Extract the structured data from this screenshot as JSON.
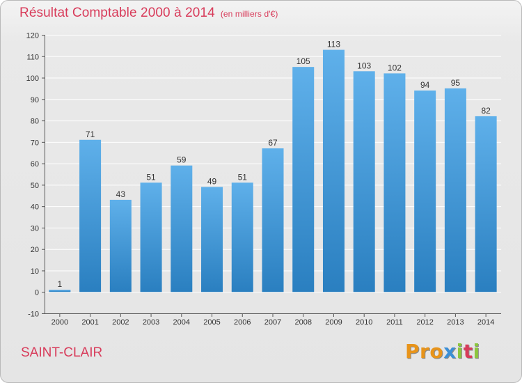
{
  "header": {
    "title": "Résultat Comptable 2000 à 2014",
    "subtitle": "(en milliers d'€)"
  },
  "footer": {
    "commune": "SAINT-CLAIR",
    "logo_text": "Proxiti"
  },
  "colors": {
    "title": "#d83b5a",
    "bar_top": "#5fb0ea",
    "bar_bottom": "#2a7fc0",
    "grid": "#ffffff",
    "logo_letters": [
      "#e8941a",
      "#e8941a",
      "#e8941a",
      "#3b8fd6",
      "#8cc63f",
      "#d83b5a",
      "#8cc63f"
    ]
  },
  "chart_data": {
    "type": "bar",
    "title": "Résultat Comptable 2000 à 2014",
    "subtitle": "(en milliers d'€)",
    "xlabel": "",
    "ylabel": "",
    "categories": [
      "2000",
      "2001",
      "2002",
      "2003",
      "2004",
      "2005",
      "2006",
      "2007",
      "2008",
      "2009",
      "2010",
      "2011",
      "2012",
      "2013",
      "2014"
    ],
    "values": [
      1,
      71,
      43,
      51,
      59,
      49,
      51,
      67,
      105,
      113,
      103,
      102,
      94,
      95,
      82
    ],
    "ylim": [
      -10,
      120
    ],
    "yticks": [
      -10,
      0,
      10,
      20,
      30,
      40,
      50,
      60,
      70,
      80,
      90,
      100,
      110,
      120
    ],
    "grid": true,
    "legend": "none"
  }
}
